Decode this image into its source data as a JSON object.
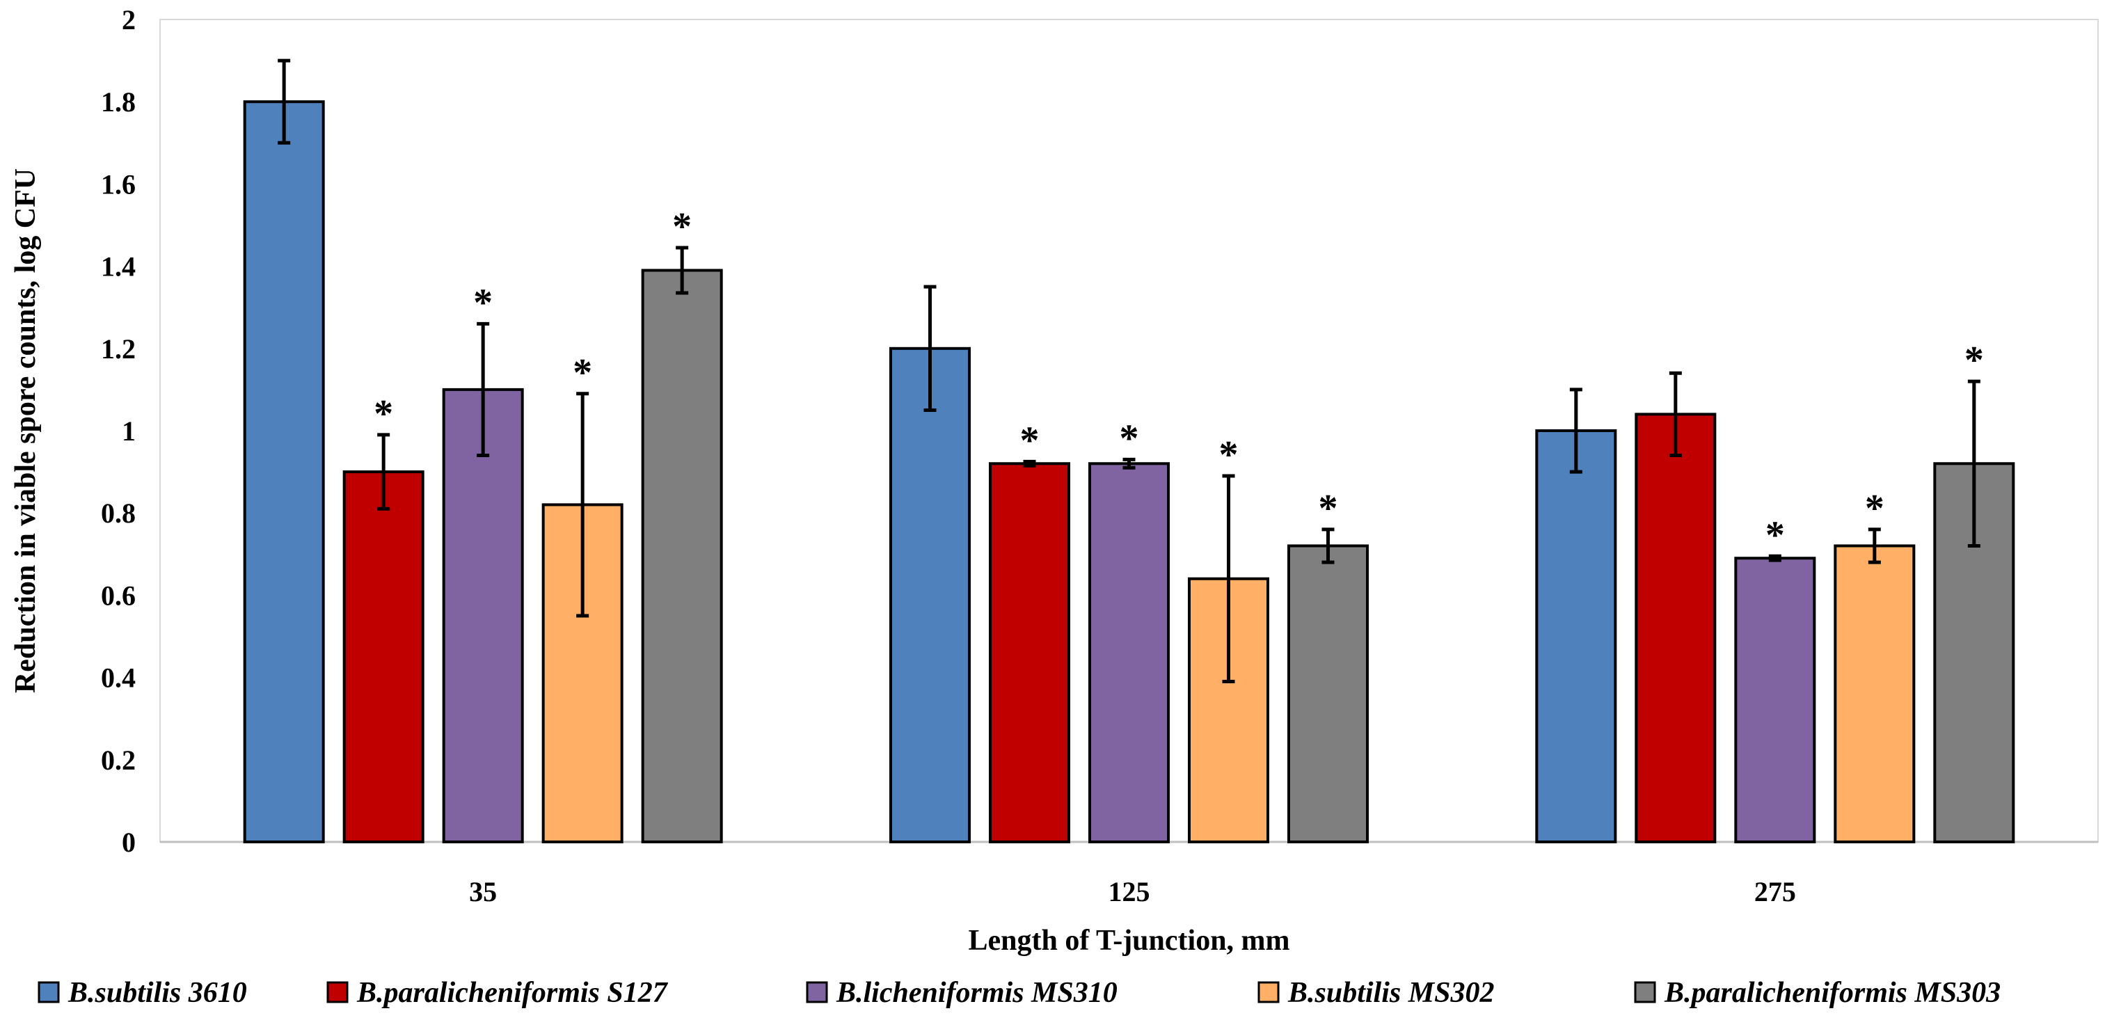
{
  "chart_data": {
    "type": "bar",
    "title": "",
    "xlabel": "Length of T-junction, mm",
    "ylabel": "Reduction in  viable spore  counts, log CFU",
    "ylim": [
      0,
      2
    ],
    "yticks": [
      "0",
      "0.2",
      "0.4",
      "0.6",
      "0.8",
      "1",
      "1.2",
      "1.4",
      "1.6",
      "1.8",
      "2"
    ],
    "categories": [
      "35",
      "125",
      "275"
    ],
    "legend_position": "bottom",
    "significance_marker": "*",
    "series": [
      {
        "name": "B.subtilis 3610",
        "color": "#4f81bd",
        "values": [
          1.8,
          1.2,
          1.0
        ],
        "errors": [
          0.1,
          0.15,
          0.1
        ],
        "significant": [
          false,
          false,
          false
        ]
      },
      {
        "name": "B.paralicheniformis S127",
        "color": "#c00000",
        "values": [
          0.9,
          0.92,
          1.04
        ],
        "errors": [
          0.09,
          0.005,
          0.1
        ],
        "significant": [
          true,
          true,
          false
        ]
      },
      {
        "name": "B.licheniformis MS310",
        "color": "#8064a2",
        "values": [
          1.1,
          0.92,
          0.69
        ],
        "errors": [
          0.16,
          0.01,
          0.005
        ],
        "significant": [
          true,
          true,
          true
        ]
      },
      {
        "name": "B.subtilis MS302",
        "color": "#ffb066",
        "values": [
          0.82,
          0.64,
          0.72
        ],
        "errors": [
          0.27,
          0.25,
          0.04
        ],
        "significant": [
          true,
          true,
          true
        ]
      },
      {
        "name": "B.paralicheniformis MS303",
        "color": "#7f7f7f",
        "values": [
          1.39,
          0.72,
          0.92
        ],
        "errors": [
          0.055,
          0.04,
          0.2
        ],
        "significant": [
          true,
          true,
          true
        ]
      }
    ]
  }
}
